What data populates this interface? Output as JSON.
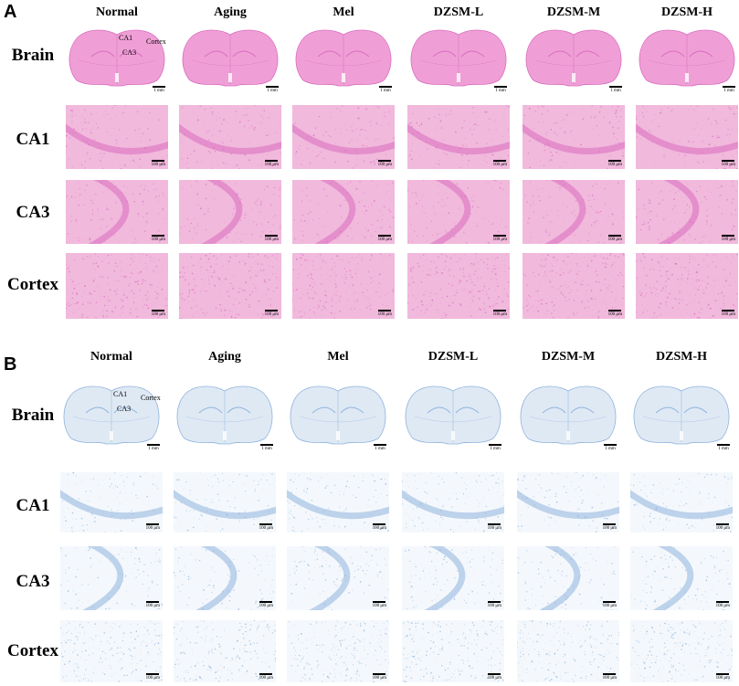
{
  "panels": [
    {
      "letter": "A",
      "stain": "he",
      "columns": [
        "Normal",
        "Aging",
        "Mel",
        "DZSM-L",
        "DZSM-M",
        "DZSM-H"
      ],
      "rows": [
        "Brain",
        "CA1",
        "CA3",
        "Cortex"
      ],
      "region_labels": {
        "ca1": "CA1",
        "ca3": "CA3",
        "cortex": "Cortex"
      },
      "scale_brain": "1 mm",
      "scale_micro": "100 μm",
      "colors": {
        "tissue": "#ef9fd6",
        "tissue_dark": "#d96cbf",
        "background": "#f1b9dc"
      }
    },
    {
      "letter": "B",
      "stain": "nissl",
      "columns": [
        "Normal",
        "Aging",
        "Mel",
        "DZSM-L",
        "DZSM-M",
        "DZSM-H"
      ],
      "rows": [
        "Brain",
        "CA1",
        "CA3",
        "Cortex"
      ],
      "region_labels": {
        "ca1": "CA1",
        "ca3": "CA3",
        "cortex": "Cortex"
      },
      "scale_brain": "1 mm",
      "scale_micro": "100 μm",
      "colors": {
        "tissue": "#dfe9f4",
        "tissue_dark": "#8fb3dc",
        "background": "#f4f8fc"
      }
    }
  ]
}
